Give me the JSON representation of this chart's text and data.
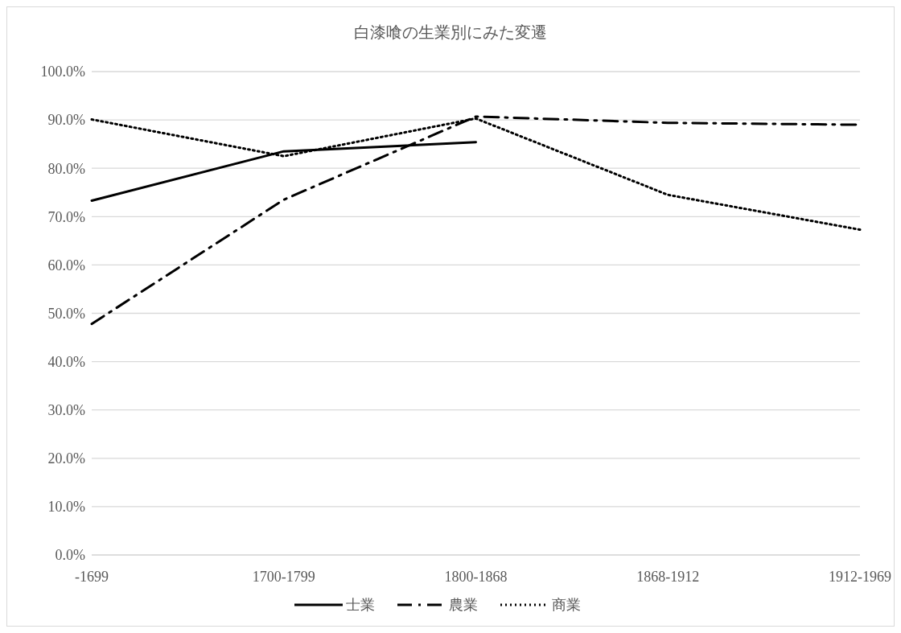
{
  "chart_data": {
    "type": "line",
    "title": "白漆喰の生業別にみた変遷",
    "categories": [
      "-1699",
      "1700-1799",
      "1800-1868",
      "1868-1912",
      "1912-1969"
    ],
    "series": [
      {
        "name": "士業",
        "color": "#000000",
        "line_style": "solid",
        "values": [
          73.3,
          83.5,
          85.4,
          null,
          null
        ]
      },
      {
        "name": "農業",
        "color": "#000000",
        "line_style": "dashed",
        "values": [
          47.8,
          73.5,
          90.7,
          89.4,
          89.0
        ]
      },
      {
        "name": "商業",
        "color": "#000000",
        "line_style": "dotted",
        "values": [
          90.1,
          82.5,
          90.3,
          74.5,
          67.3
        ]
      }
    ],
    "ylim": [
      0,
      100
    ],
    "yticks": [
      {
        "value": 0,
        "label": "0.0%"
      },
      {
        "value": 10,
        "label": "10.0%"
      },
      {
        "value": 20,
        "label": "20.0%"
      },
      {
        "value": 30,
        "label": "30.0%"
      },
      {
        "value": 40,
        "label": "40.0%"
      },
      {
        "value": 50,
        "label": "50.0%"
      },
      {
        "value": 60,
        "label": "60.0%"
      },
      {
        "value": 70,
        "label": "70.0%"
      },
      {
        "value": 80,
        "label": "80.0%"
      },
      {
        "value": 90,
        "label": "90.0%"
      },
      {
        "value": 100,
        "label": "100.0%"
      }
    ],
    "grid": "y",
    "legend": "bottom",
    "marker": "none"
  }
}
